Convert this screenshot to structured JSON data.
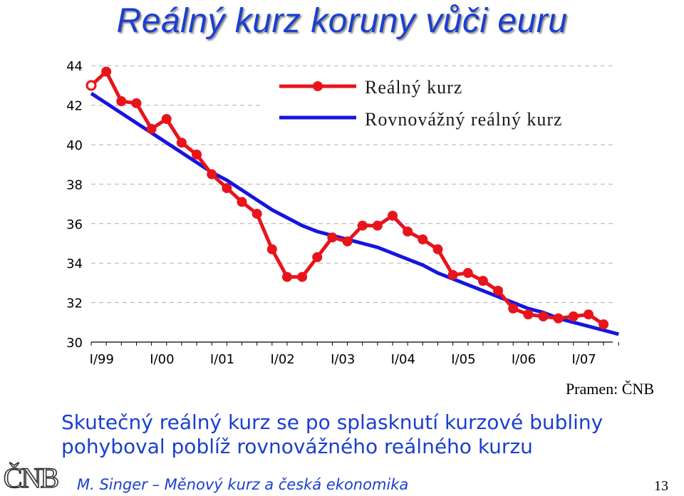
{
  "title": "Reálný kurz koruny vůči euru",
  "source": "Pramen: ČNB",
  "caption": "Skutečný reálný kurz se po splasknutí kurzové bubliny pohyboval poblíž rovnovážného reálného kurzu",
  "footer": "M. Singer – Měnový kurz a česká ekonomika",
  "page_number": "13",
  "logo_text": "ČNB",
  "colors": {
    "title": "#1a3fd0",
    "real": "#e8141b",
    "equilibrium": "#1515e0",
    "caption": "#1a3fd0"
  },
  "chart_data": {
    "type": "line",
    "y_ticks": [
      "44",
      "42",
      "40",
      "38",
      "36",
      "34",
      "32",
      "30"
    ],
    "ylim": [
      30,
      44
    ],
    "x_ticks": [
      "I/99",
      "I/00",
      "I/01",
      "I/02",
      "I/03",
      "I/04",
      "I/05",
      "I/06",
      "I/07"
    ],
    "x_count": 36,
    "grid": "horizontal dashed",
    "legend_position": "top-right",
    "series": [
      {
        "name": "Reálný kurz",
        "marker": "circle",
        "values": [
          43.0,
          43.7,
          42.2,
          42.1,
          40.8,
          41.3,
          40.1,
          39.5,
          38.5,
          37.8,
          37.1,
          36.5,
          34.7,
          33.3,
          33.3,
          34.3,
          35.3,
          35.1,
          35.9,
          35.9,
          36.4,
          35.6,
          35.2,
          34.7,
          33.4,
          33.5,
          33.1,
          32.6,
          31.7,
          31.4,
          31.3,
          31.2,
          31.3,
          31.4,
          30.9
        ]
      },
      {
        "name": "Rovnovážný reálný kurz",
        "marker": "none",
        "values": [
          42.6,
          42.1,
          41.6,
          41.1,
          40.6,
          40.1,
          39.6,
          39.1,
          38.6,
          38.2,
          37.7,
          37.2,
          36.7,
          36.3,
          35.9,
          35.6,
          35.4,
          35.2,
          35.0,
          34.8,
          34.5,
          34.2,
          33.9,
          33.5,
          33.2,
          32.9,
          32.6,
          32.3,
          32.0,
          31.7,
          31.5,
          31.2,
          31.0,
          30.8,
          30.6,
          30.4
        ]
      }
    ]
  }
}
